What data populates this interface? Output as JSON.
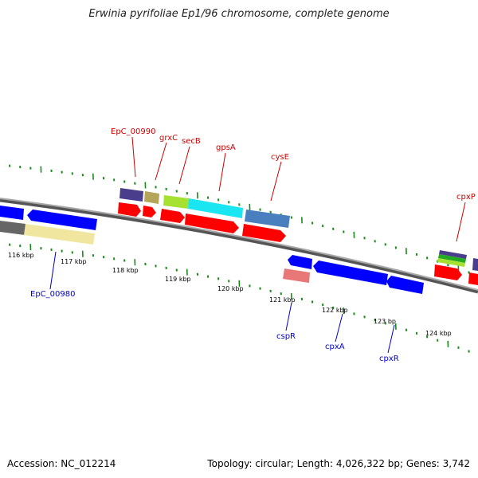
{
  "title": "Erwinia pyrifoliae Ep1/96 chromosome, complete genome",
  "footer": {
    "accession": "Accession: NC_012214",
    "summary": "Topology: circular; Length: 4,026,322 bp; Genes: 3,742"
  },
  "colors": {
    "forward_label": "#cc0000",
    "reverse_label": "#0000cc",
    "backbone": "#808080",
    "tick": "#1a8a1a",
    "cds": "#ff0000",
    "reverse_gene": "#0000ff"
  },
  "scale": {
    "unit": "kbp",
    "ticks": [
      "116 kbp",
      "117 kbp",
      "118 kbp",
      "119 kbp",
      "120 kbp",
      "121 kbp",
      "122 kbp",
      "123 bp",
      "124 kbp"
    ]
  },
  "gene_labels": {
    "forward": [
      "EpC_00990",
      "grxC",
      "secB",
      "gpsA",
      "cysE",
      "cpxP"
    ],
    "reverse": [
      "EpC_00980",
      "cspR",
      "cpxA",
      "cpxR"
    ]
  }
}
